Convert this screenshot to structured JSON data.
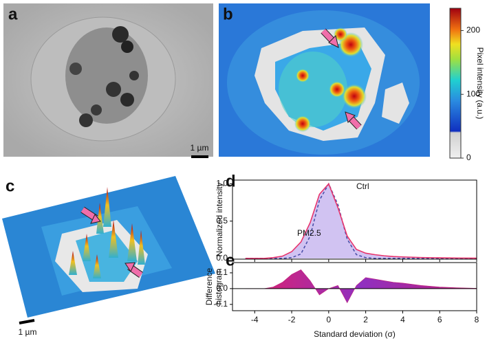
{
  "panels": {
    "a": "a",
    "b": "b",
    "c": "c",
    "d": "d",
    "e": "e"
  },
  "scale_bar_a": "1 µm",
  "scale_bar_c": "1 µm",
  "colorbar": {
    "label": "Pixel intensity (a.u.)",
    "lim": [
      0,
      235
    ],
    "ticks": [
      0,
      100,
      200
    ]
  },
  "chart_data": [
    {
      "type": "line",
      "ylabel": "Normalized intensity",
      "annotations": [
        "Ctrl",
        "PM2.5"
      ],
      "x": [
        -4.5,
        -4,
        -3.5,
        -3,
        -2.5,
        -2,
        -1.5,
        -1,
        -0.5,
        0,
        0.5,
        1,
        1.5,
        2,
        2.5,
        3,
        3.5,
        4,
        5,
        6,
        7,
        8
      ],
      "series": [
        {
          "name": "Ctrl",
          "color": "#4a4fa8",
          "dashed": true,
          "values": [
            0,
            0,
            0,
            0,
            0,
            0.01,
            0.06,
            0.3,
            0.78,
            1.0,
            0.72,
            0.26,
            0.05,
            0.01,
            0,
            0,
            0,
            0,
            0,
            0,
            0,
            0
          ]
        },
        {
          "name": "PM2.5",
          "color": "#e8336b",
          "fill": "#c9b8f0",
          "values": [
            0,
            0,
            0,
            0.01,
            0.03,
            0.09,
            0.22,
            0.48,
            0.86,
            1.0,
            0.68,
            0.3,
            0.12,
            0.07,
            0.05,
            0.035,
            0.025,
            0.02,
            0.012,
            0.008,
            0.005,
            0.003
          ]
        }
      ],
      "xlim": [
        -5.2,
        8
      ],
      "xticks": [
        -4,
        -2,
        0,
        2,
        4,
        6,
        8
      ],
      "ylim": [
        -0.01,
        1.05
      ],
      "yticks": [
        {
          "value": 0,
          "label": "0.0"
        },
        0.5,
        {
          "value": 1,
          "label": "1.0"
        }
      ]
    },
    {
      "type": "area",
      "ylabel": [
        "Difference",
        "histogram"
      ],
      "xlabel": "Standard deviation (σ)",
      "x": [
        -4.5,
        -4,
        -3.5,
        -3,
        -2.5,
        -2,
        -1.5,
        -1,
        -0.5,
        0,
        0.5,
        1,
        1.5,
        2,
        2.5,
        3,
        3.5,
        4,
        5,
        6,
        7,
        8
      ],
      "values": [
        0,
        0,
        0,
        0.01,
        0.04,
        0.09,
        0.12,
        0.05,
        -0.04,
        0,
        0.02,
        -0.09,
        0.02,
        0.07,
        0.06,
        0.05,
        0.04,
        0.035,
        0.02,
        0.01,
        0.005,
        0.002
      ],
      "color": "#c0207a",
      "xlim": [
        -5.2,
        8
      ],
      "xticks": [
        -4,
        -2,
        0,
        2,
        4,
        6,
        8
      ],
      "ylim": [
        -0.14,
        0.165
      ],
      "yticks": [
        -0.1,
        {
          "value": 0,
          "label": "0.0"
        },
        0.1
      ]
    }
  ]
}
